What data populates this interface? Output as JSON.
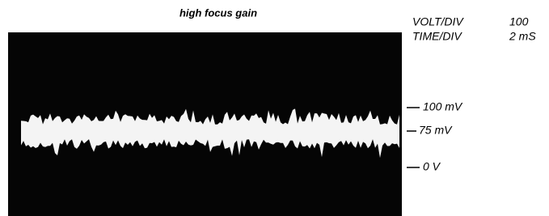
{
  "title": "high focus gain",
  "settings": [
    {
      "label": "VOLT/DIV",
      "value": "100"
    },
    {
      "label": "TIME/DIV",
      "value": "2 mS"
    }
  ],
  "levels": [
    "100 mV",
    "75 mV",
    "0 V"
  ]
}
